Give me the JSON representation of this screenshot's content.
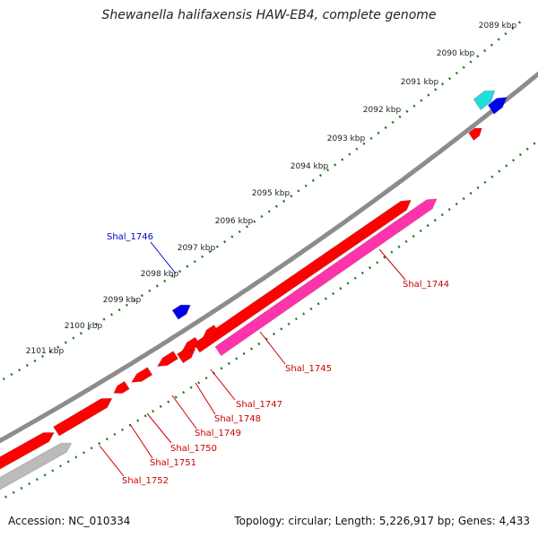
{
  "title": "Shewanella halifaxensis HAW-EB4, complete genome",
  "accession_text": "Accession: NC_010334",
  "topology_text": "Topology: circular; Length: 5,226,917 bp; Genes: 4,433",
  "colors": {
    "backbone": "#8c8c8c",
    "tick_line": "#1a7a1a",
    "forward_gene": "#ff0000",
    "reverse_gene": "#ff0000",
    "pseudo_gene": "#ff33aa",
    "rna_gene": "#bbbbbb",
    "blue_feature": "#0000ee",
    "cyan_feature": "#22dddd",
    "red_label": "#cc0000",
    "blue_label": "#0000cc"
  },
  "kbp_labels": [
    "2089 kbp",
    "2090 kbp",
    "2091 kbp",
    "2092 kbp",
    "2093 kbp",
    "2094 kbp",
    "2095 kbp",
    "2096 kbp",
    "2097 kbp",
    "2098 kbp",
    "2099 kbp",
    "2100 kbp",
    "2101 kbp"
  ],
  "gene_labels": {
    "shal_1744": "Shal_1744",
    "shal_1745": "Shal_1745",
    "shal_1746": "Shal_1746",
    "shal_1747": "Shal_1747",
    "shal_1748": "Shal_1748",
    "shal_1749": "Shal_1749",
    "shal_1750": "Shal_1750",
    "shal_1751": "Shal_1751",
    "shal_1752": "Shal_1752"
  }
}
